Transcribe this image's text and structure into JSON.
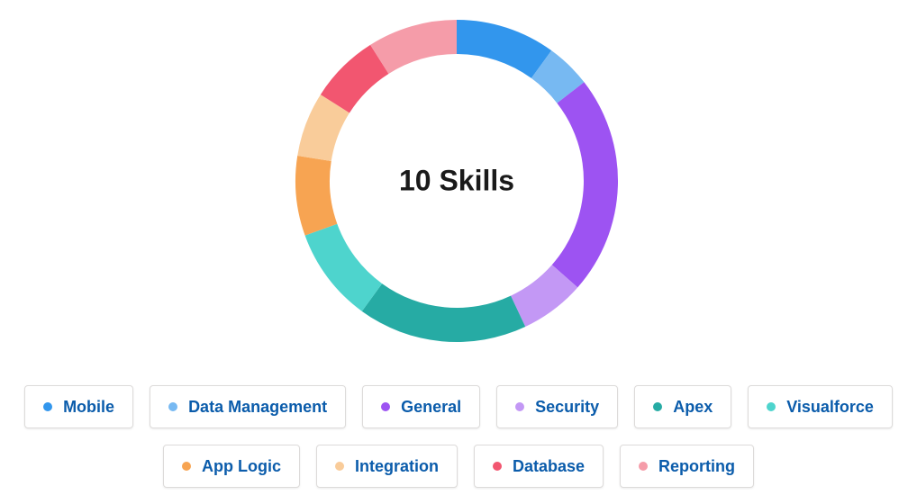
{
  "chart_data": {
    "type": "pie",
    "center_label": "10 Skills",
    "categories": [
      "Mobile",
      "Data Management",
      "General",
      "Security",
      "Apex",
      "Visualforce",
      "App Logic",
      "Integration",
      "Database",
      "Reporting"
    ],
    "values": [
      10,
      4.5,
      22,
      6.5,
      17,
      9.5,
      8,
      6.5,
      7,
      9
    ],
    "colors": [
      "#3296ed",
      "#77b9f2",
      "#9d53f2",
      "#c398f5",
      "#26aba4",
      "#4ed4cd",
      "#f7a452",
      "#f9cc9a",
      "#f25670",
      "#f59ca9"
    ],
    "legend_position": "bottom"
  },
  "legend": {
    "row1": [
      0,
      1,
      2,
      3,
      4,
      5
    ],
    "row2": [
      6,
      7,
      8,
      9
    ]
  }
}
